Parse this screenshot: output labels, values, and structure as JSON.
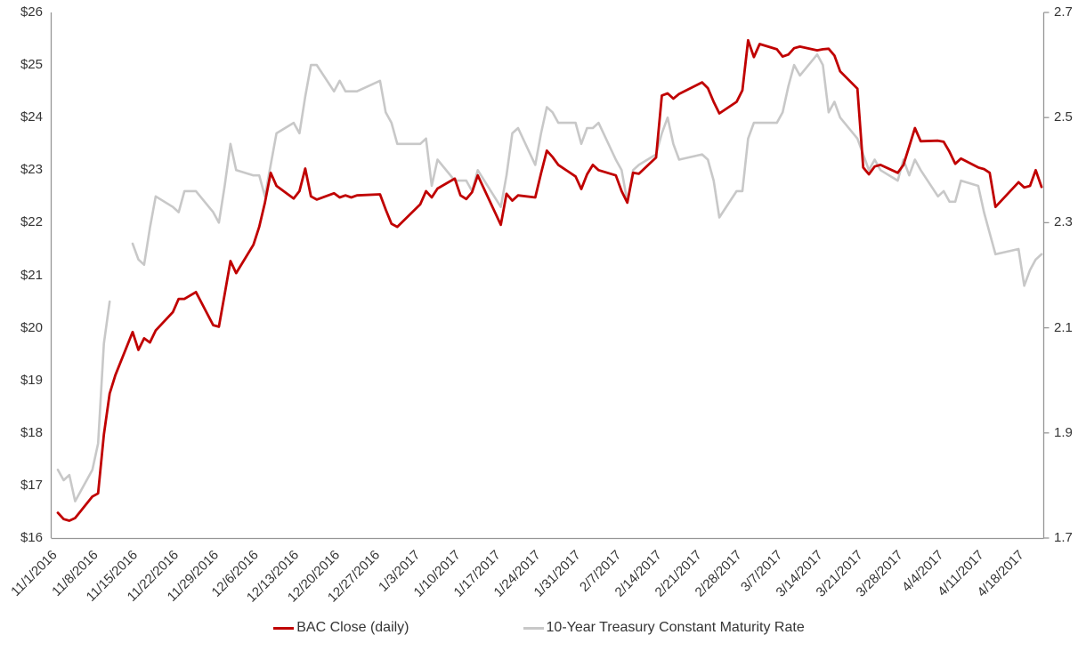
{
  "chart_data": {
    "type": "line",
    "title": "",
    "xlabel": "",
    "ylabel_left": "",
    "ylabel_right": "",
    "grid": "off",
    "legend_position": "bottom-center",
    "background_color": "#ffffff",
    "axis_line_color": "#969696",
    "label_color": "#353535",
    "left_axis": {
      "min": 16,
      "max": 26,
      "step": 1,
      "tick_labels": [
        "$26",
        "$25",
        "$24",
        "$23",
        "$22",
        "$21",
        "$20",
        "$19",
        "$18",
        "$17",
        "$16"
      ]
    },
    "right_axis": {
      "min": 1.7,
      "max": 2.7,
      "step": 0.2,
      "tick_labels": [
        "2.7",
        "2.5",
        "2.3",
        "2.1",
        "1.9",
        "1.7"
      ]
    },
    "x_tick_labels": [
      "11/1/2016",
      "11/8/2016",
      "11/15/2016",
      "11/22/2016",
      "11/29/2016",
      "12/6/2016",
      "12/13/2016",
      "12/20/2016",
      "12/27/2016",
      "1/3/2017",
      "1/10/2017",
      "1/17/2017",
      "1/24/2017",
      "1/31/2017",
      "2/7/2017",
      "2/14/2017",
      "2/21/2017",
      "2/28/2017",
      "3/7/2017",
      "3/14/2017",
      "3/21/2017",
      "3/28/2017",
      "4/4/2017",
      "4/11/2017",
      "4/18/2017"
    ],
    "dates": [
      "11/1/2016",
      "11/2/2016",
      "11/3/2016",
      "11/4/2016",
      "11/7/2016",
      "11/8/2016",
      "11/9/2016",
      "11/10/2016",
      "11/11/2016",
      "11/14/2016",
      "11/15/2016",
      "11/16/2016",
      "11/17/2016",
      "11/18/2016",
      "11/21/2016",
      "11/22/2016",
      "11/23/2016",
      "11/25/2016",
      "11/28/2016",
      "11/29/2016",
      "11/30/2016",
      "12/1/2016",
      "12/2/2016",
      "12/5/2016",
      "12/6/2016",
      "12/7/2016",
      "12/8/2016",
      "12/9/2016",
      "12/12/2016",
      "12/13/2016",
      "12/14/2016",
      "12/15/2016",
      "12/16/2016",
      "12/19/2016",
      "12/20/2016",
      "12/21/2016",
      "12/22/2016",
      "12/23/2016",
      "12/27/2016",
      "12/28/2016",
      "12/29/2016",
      "12/30/2016",
      "1/3/2017",
      "1/4/2017",
      "1/5/2017",
      "1/6/2017",
      "1/9/2017",
      "1/10/2017",
      "1/11/2017",
      "1/12/2017",
      "1/13/2017",
      "1/17/2017",
      "1/18/2017",
      "1/19/2017",
      "1/20/2017",
      "1/23/2017",
      "1/24/2017",
      "1/25/2017",
      "1/26/2017",
      "1/27/2017",
      "1/30/2017",
      "1/31/2017",
      "2/1/2017",
      "2/2/2017",
      "2/3/2017",
      "2/6/2017",
      "2/7/2017",
      "2/8/2017",
      "2/9/2017",
      "2/10/2017",
      "2/13/2017",
      "2/14/2017",
      "2/15/2017",
      "2/16/2017",
      "2/17/2017",
      "2/21/2017",
      "2/22/2017",
      "2/23/2017",
      "2/24/2017",
      "2/27/2017",
      "2/28/2017",
      "3/1/2017",
      "3/2/2017",
      "3/3/2017",
      "3/6/2017",
      "3/7/2017",
      "3/8/2017",
      "3/9/2017",
      "3/10/2017",
      "3/13/2017",
      "3/14/2017",
      "3/15/2017",
      "3/16/2017",
      "3/17/2017",
      "3/20/2017",
      "3/21/2017",
      "3/22/2017",
      "3/23/2017",
      "3/24/2017",
      "3/27/2017",
      "3/28/2017",
      "3/29/2017",
      "3/30/2017",
      "3/31/2017",
      "4/3/2017",
      "4/4/2017",
      "4/5/2017",
      "4/6/2017",
      "4/7/2017",
      "4/10/2017",
      "4/11/2017",
      "4/12/2017",
      "4/13/2017",
      "4/17/2017",
      "4/18/2017",
      "4/19/2017",
      "4/20/2017",
      "4/21/2017"
    ],
    "series": [
      {
        "name": "BAC Close (daily)",
        "axis": "left",
        "color": "#C00000",
        "stroke_width": 2.8,
        "values": [
          16.48,
          16.36,
          16.33,
          16.38,
          16.79,
          16.85,
          17.97,
          18.75,
          19.1,
          19.92,
          19.58,
          19.8,
          19.72,
          19.95,
          20.3,
          20.55,
          20.55,
          20.68,
          20.05,
          20.02,
          20.64,
          21.27,
          21.04,
          21.58,
          21.92,
          22.38,
          22.95,
          22.7,
          22.46,
          22.6,
          23.03,
          22.5,
          22.44,
          22.56,
          22.48,
          22.52,
          22.48,
          22.52,
          22.54,
          22.25,
          21.98,
          21.92,
          22.35,
          22.6,
          22.48,
          22.65,
          22.84,
          22.52,
          22.45,
          22.58,
          22.9,
          21.96,
          22.55,
          22.42,
          22.52,
          22.48,
          22.94,
          23.37,
          23.25,
          23.1,
          22.88,
          22.64,
          22.92,
          23.1,
          23.0,
          22.9,
          22.6,
          22.38,
          22.95,
          22.93,
          23.24,
          24.42,
          24.46,
          24.36,
          24.45,
          24.67,
          24.56,
          24.3,
          24.08,
          24.3,
          24.52,
          25.47,
          25.15,
          25.4,
          25.3,
          25.16,
          25.2,
          25.32,
          25.35,
          25.28,
          25.3,
          25.31,
          25.18,
          24.88,
          24.55,
          23.05,
          22.92,
          23.07,
          23.1,
          22.95,
          23.1,
          23.45,
          23.8,
          23.55,
          23.56,
          23.54,
          23.35,
          23.12,
          23.22,
          23.05,
          23.02,
          22.95,
          22.3,
          22.77,
          22.67,
          22.7,
          23.0,
          22.68
        ]
      },
      {
        "name": "10-Year Treasury Constant Maturity Rate",
        "axis": "right",
        "color": "#C8C8C8",
        "stroke_width": 2.6,
        "values": [
          1.83,
          1.81,
          1.82,
          1.77,
          1.83,
          1.88,
          2.07,
          2.15,
          null,
          2.26,
          2.23,
          2.22,
          2.29,
          2.35,
          2.33,
          2.32,
          2.36,
          2.36,
          2.32,
          2.3,
          2.37,
          2.45,
          2.4,
          2.39,
          2.39,
          2.35,
          2.41,
          2.47,
          2.49,
          2.47,
          2.54,
          2.6,
          2.6,
          2.55,
          2.57,
          2.55,
          2.55,
          2.55,
          2.57,
          2.51,
          2.49,
          2.45,
          2.45,
          2.46,
          2.37,
          2.42,
          2.38,
          2.38,
          2.38,
          2.36,
          2.4,
          2.33,
          2.39,
          2.47,
          2.48,
          2.41,
          2.47,
          2.52,
          2.51,
          2.49,
          2.49,
          2.45,
          2.48,
          2.48,
          2.49,
          2.42,
          2.4,
          2.34,
          2.4,
          2.41,
          2.43,
          2.47,
          2.5,
          2.45,
          2.42,
          2.43,
          2.42,
          2.38,
          2.31,
          2.36,
          2.36,
          2.46,
          2.49,
          2.49,
          2.49,
          2.51,
          2.56,
          2.6,
          2.58,
          2.62,
          2.6,
          2.51,
          2.53,
          2.5,
          2.46,
          2.43,
          2.4,
          2.42,
          2.4,
          2.38,
          2.42,
          2.39,
          2.42,
          2.4,
          2.35,
          2.36,
          2.34,
          2.34,
          2.38,
          2.37,
          2.32,
          2.28,
          2.24,
          2.25,
          2.18,
          2.21,
          2.23,
          2.24
        ]
      }
    ]
  }
}
